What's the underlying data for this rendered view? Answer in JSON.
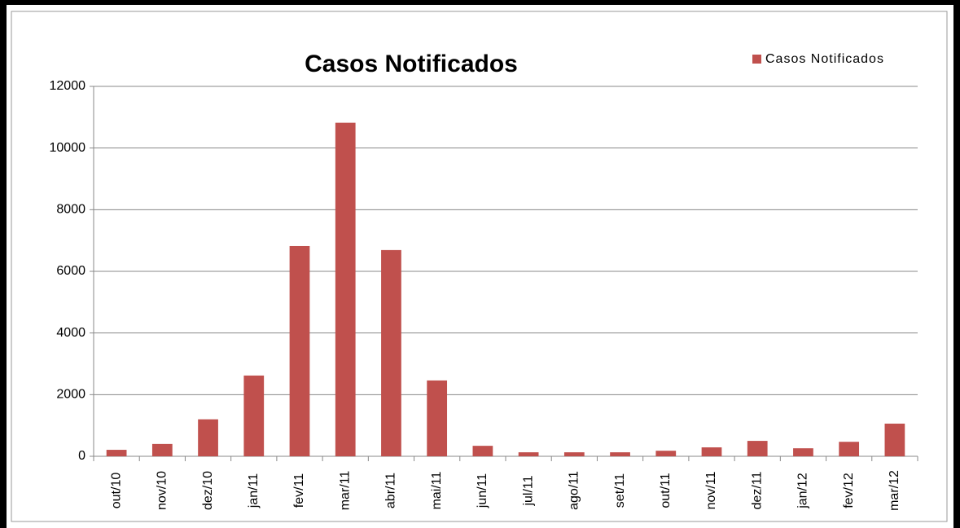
{
  "chart_data": {
    "type": "bar",
    "title": "Casos Notificados",
    "categories": [
      "out/10",
      "nov/10",
      "dez/10",
      "jan/11",
      "fev/11",
      "mar/11",
      "abr/11",
      "mai/11",
      "jun/11",
      "jul/11",
      "ago/11",
      "set/11",
      "out/11",
      "nov/11",
      "dez/11",
      "jan/12",
      "fev/12",
      "mar/12"
    ],
    "series": [
      {
        "name": "Casos Notificados",
        "color": "#c0504d",
        "values": [
          210,
          400,
          1200,
          2620,
          6820,
          10820,
          6690,
          2460,
          340,
          130,
          130,
          130,
          180,
          290,
          500,
          260,
          470,
          1060
        ]
      }
    ],
    "ylim": [
      0,
      12000
    ],
    "yticks": [
      0,
      2000,
      4000,
      6000,
      8000,
      10000,
      12000
    ],
    "grid": true,
    "legend": "top-right"
  }
}
